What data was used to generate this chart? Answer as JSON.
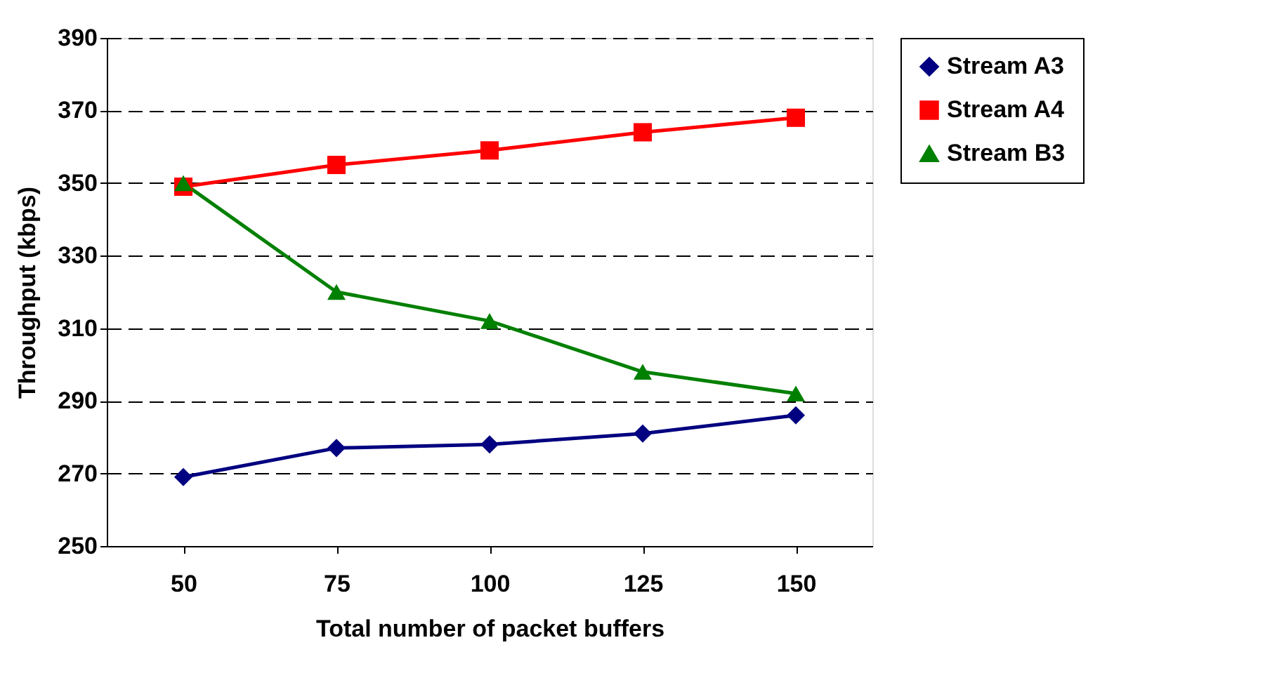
{
  "chart_data": {
    "type": "line",
    "xlabel": "Total number of packet buffers",
    "ylabel": "Throughput (kbps)",
    "categories": [
      "50",
      "75",
      "100",
      "125",
      "150"
    ],
    "series": [
      {
        "name": "Stream A3",
        "color": "#000080",
        "marker": "diamond",
        "values": [
          269,
          277,
          278,
          281,
          286
        ]
      },
      {
        "name": "Stream A4",
        "color": "#ff0000",
        "marker": "square",
        "values": [
          349,
          355,
          359,
          364,
          368
        ]
      },
      {
        "name": "Stream B3",
        "color": "#008000",
        "marker": "triangle",
        "values": [
          350,
          320,
          312,
          298,
          292
        ]
      }
    ],
    "ylim": [
      250,
      390
    ],
    "yticks": [
      250,
      270,
      290,
      310,
      330,
      350,
      370,
      390
    ],
    "grid": "y",
    "legend": "right",
    "line_style": "solid"
  }
}
